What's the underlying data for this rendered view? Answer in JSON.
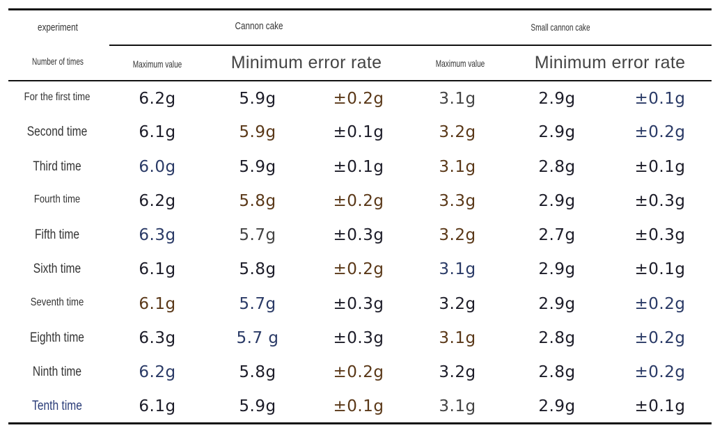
{
  "header": {
    "experiment": "experiment",
    "number_of_times": "Number of times",
    "group1": "Cannon cake",
    "group2": "Small cannon cake",
    "max1": "Maximum value",
    "minerr1": "Minimum error rate",
    "max2": "Maximum value",
    "minerr2": "Minimum error rate"
  },
  "rows": [
    {
      "label": "For the first time",
      "c": [
        "6.2g",
        "5.9g",
        "±0.2g",
        "3.1g",
        "2.9g",
        "±0.1g"
      ]
    },
    {
      "label": "Second time",
      "c": [
        "6.1g",
        "5.9g",
        "±0.1g",
        "3.2g",
        "2.9g",
        "±0.2g"
      ]
    },
    {
      "label": "Third time",
      "c": [
        "6.0g",
        "5.9g",
        "±0.1g",
        "3.1g",
        "2.8g",
        "±0.1g"
      ]
    },
    {
      "label": "Fourth time",
      "c": [
        "6.2g",
        "5.8g",
        "±0.2g",
        "3.3g",
        "2.9g",
        "±0.3g"
      ]
    },
    {
      "label": "Fifth time",
      "c": [
        "6.3g",
        "5.7g",
        "±0.3g",
        "3.2g",
        "2.7g",
        "±0.3g"
      ]
    },
    {
      "label": "Sixth time",
      "c": [
        "6.1g",
        "5.8g",
        "±0.2g",
        "3.1g",
        "2.9g",
        "±0.1g"
      ]
    },
    {
      "label": "Seventh time",
      "c": [
        "6.1g",
        "5.7g",
        "±0.3g",
        "3.2g",
        "2.9g",
        "±0.2g"
      ]
    },
    {
      "label": "Eighth time",
      "c": [
        "6.3g",
        "5.7 g",
        "±0.3g",
        "3.1g",
        "2.8g",
        "±0.2g"
      ]
    },
    {
      "label": "Ninth time",
      "c": [
        "6.2g",
        "5.8g",
        "±0.2g",
        "3.2g",
        "2.8g",
        "±0.2g"
      ]
    },
    {
      "label": "Tenth time",
      "c": [
        "6.1g",
        "5.9g",
        "±0.1g",
        "3.1g",
        "2.9g",
        "±0.1g"
      ]
    }
  ]
}
